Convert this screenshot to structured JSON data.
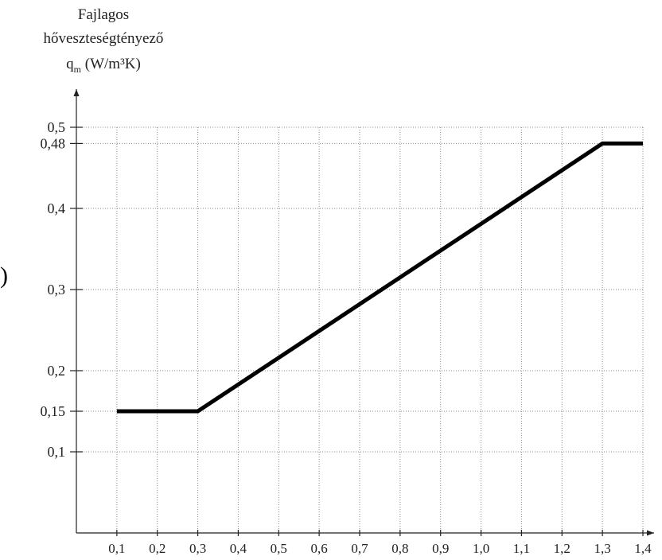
{
  "chart_data": {
    "type": "line",
    "ylabel_lines": [
      "Fajlagos",
      "hőveszteségtényező",
      "q",
      "m",
      " (W/m³K)"
    ],
    "xlabel": "",
    "x_ticks": [
      "0,1",
      "0,2",
      "0,3",
      "0,4",
      "0,5",
      "0,6",
      "0,7",
      "0,8",
      "0,9",
      "1,0",
      "1,1",
      "1,2",
      "1,3",
      "1,4"
    ],
    "y_ticks": [
      {
        "value": 0.1,
        "label": "0,1"
      },
      {
        "value": 0.15,
        "label": "0,15"
      },
      {
        "value": 0.2,
        "label": "0,2"
      },
      {
        "value": 0.3,
        "label": "0,3"
      },
      {
        "value": 0.4,
        "label": "0,4"
      },
      {
        "value": 0.48,
        "label": "0,48"
      },
      {
        "value": 0.5,
        "label": "0,5"
      }
    ],
    "xlim": [
      0,
      1.4
    ],
    "ylim": [
      0,
      0.5
    ],
    "grid": true,
    "series": [
      {
        "x": [
          0.1,
          0.3,
          1.3,
          1.4
        ],
        "y": [
          0.15,
          0.15,
          0.48,
          0.48
        ],
        "color": "#000000"
      }
    ],
    "stray_glyph": ")"
  }
}
